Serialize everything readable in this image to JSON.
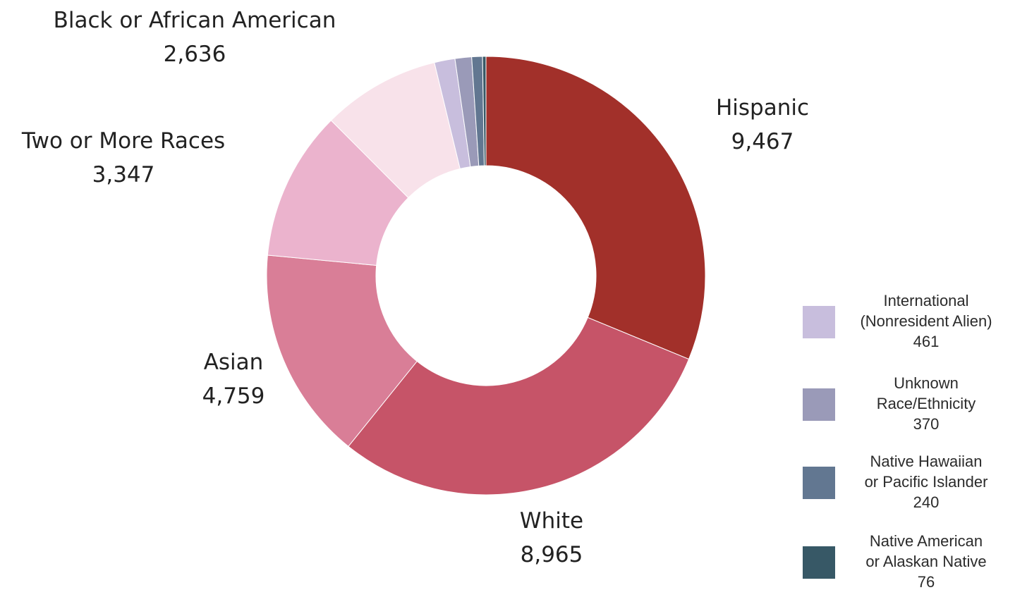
{
  "chart_data": {
    "type": "pie",
    "donut": true,
    "slices": [
      {
        "name": "Hispanic",
        "value": 9467,
        "value_label": "9,467",
        "color": "#a2302a",
        "labeled": true
      },
      {
        "name": "White",
        "value": 8965,
        "value_label": "8,965",
        "color": "#c65468",
        "labeled": true
      },
      {
        "name": "Asian",
        "value": 4759,
        "value_label": "4,759",
        "color": "#d97e97",
        "labeled": true
      },
      {
        "name": "Two or More Races",
        "value": 3347,
        "value_label": "3,347",
        "color": "#ebb3cd",
        "labeled": true
      },
      {
        "name": "Black or African American",
        "value": 2636,
        "value_label": "2,636",
        "color": "#f8e2ea",
        "labeled": true
      },
      {
        "name": [
          "International",
          "(Nonresident Alien)"
        ],
        "value": 461,
        "value_label": "461",
        "color": "#c8bedd",
        "labeled": false
      },
      {
        "name": [
          "Unknown",
          "Race/Ethnicity"
        ],
        "value": 370,
        "value_label": "370",
        "color": "#9a9ab8",
        "labeled": false
      },
      {
        "name": [
          "Native Hawaiian",
          "or Pacific Islander"
        ],
        "value": 240,
        "value_label": "240",
        "color": "#627791",
        "labeled": false
      },
      {
        "name": [
          "Native American",
          "or Alaskan Native"
        ],
        "value": 76,
        "value_label": "76",
        "color": "#375866",
        "labeled": false
      }
    ],
    "legend_position": "bottom-right"
  }
}
